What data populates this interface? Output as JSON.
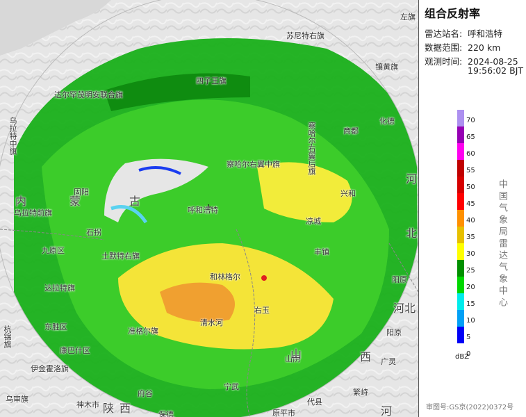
{
  "panel": {
    "title": "组合反射率",
    "station_label": "雷达站名:",
    "station_value": "呼和浩特",
    "range_label": "数据范围:",
    "range_value": "220 km",
    "time_label": "观测时间:",
    "time_date": "2024-08-25",
    "time_clock": "19:56:02 BJT",
    "legend_unit": "dBZ",
    "org": "中国气象局雷达气象中心",
    "review": "审图号:GS京(2022)0372号"
  },
  "legend": [
    {
      "value": "0",
      "color": "#0000f6"
    },
    {
      "value": "5",
      "color": "#01a0f6"
    },
    {
      "value": "10",
      "color": "#00ecec"
    },
    {
      "value": "15",
      "color": "#00d800"
    },
    {
      "value": "20",
      "color": "#019000"
    },
    {
      "value": "25",
      "color": "#ffff00"
    },
    {
      "value": "30",
      "color": "#e7c000"
    },
    {
      "value": "35",
      "color": "#ff9000"
    },
    {
      "value": "40",
      "color": "#ff0000"
    },
    {
      "value": "45",
      "color": "#d60000"
    },
    {
      "value": "50",
      "color": "#c00000"
    },
    {
      "value": "55",
      "color": "#ff00f0"
    },
    {
      "value": "60",
      "color": "#9600b4"
    },
    {
      "value": "65",
      "color": "#ad90f0"
    },
    {
      "value": "70",
      "color": "#ad90f0"
    }
  ],
  "legend_ticks": [
    "70",
    "65",
    "60",
    "55",
    "50",
    "45",
    "40",
    "35",
    "30",
    "25",
    "20",
    "15",
    "10",
    "5",
    "0"
  ],
  "places": [
    {
      "name": "苏尼特右旗"
    },
    {
      "name": "左旗"
    },
    {
      "name": "镶黄旗"
    },
    {
      "name": "达尔罕茂明安联合旗"
    },
    {
      "name": "四子王旗"
    },
    {
      "name": "察哈尔右翼后旗"
    },
    {
      "name": "商都"
    },
    {
      "name": "化德"
    },
    {
      "name": "察哈尔右翼中旗"
    },
    {
      "name": "兴和"
    },
    {
      "name": "固阳"
    },
    {
      "name": "乌拉特前旗"
    },
    {
      "name": "石拐"
    },
    {
      "name": "土默特右旗"
    },
    {
      "name": "九原区"
    },
    {
      "name": "呼和浩特"
    },
    {
      "name": "凉城"
    },
    {
      "name": "丰镇"
    },
    {
      "name": "和林格尔"
    },
    {
      "name": "达拉特旗"
    },
    {
      "name": "清水河"
    },
    {
      "name": "右玉"
    },
    {
      "name": "阳原"
    },
    {
      "name": "东胜区"
    },
    {
      "name": "伊金霍洛旗"
    },
    {
      "name": "准格尔旗"
    },
    {
      "name": "府谷"
    },
    {
      "name": "神木市"
    },
    {
      "name": "保德"
    },
    {
      "name": "山阴"
    },
    {
      "name": "代县"
    },
    {
      "name": "繁峙"
    },
    {
      "name": "广灵"
    },
    {
      "name": "宁武"
    },
    {
      "name": "原平市"
    },
    {
      "name": "乌审旗"
    },
    {
      "name": "康巴什区"
    },
    {
      "name": "杭锦旗"
    },
    {
      "name": "乌拉特中旗"
    },
    {
      "name": "阳原"
    }
  ],
  "provinces": [
    {
      "name": "内"
    },
    {
      "name": "蒙"
    },
    {
      "name": "古"
    },
    {
      "name": "山"
    },
    {
      "name": "西"
    },
    {
      "name": "陕"
    },
    {
      "name": "西"
    },
    {
      "name": "河"
    },
    {
      "name": "北"
    },
    {
      "name": "河北"
    },
    {
      "name": "河北"
    },
    {
      "name": "河"
    }
  ]
}
